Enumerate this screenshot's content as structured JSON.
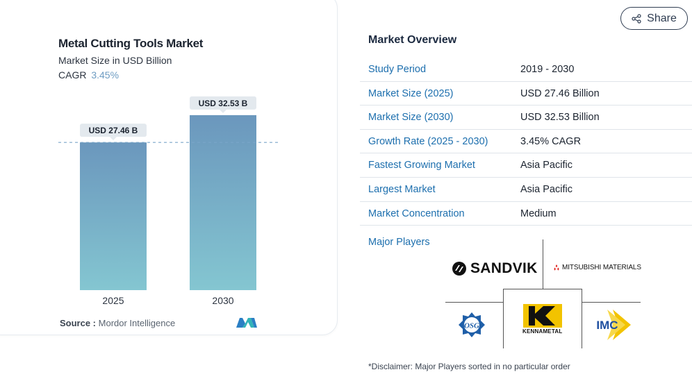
{
  "chart": {
    "title": "Metal Cutting Tools Market",
    "subtitle": "Market Size in USD Billion",
    "cagr_label": "CAGR",
    "cagr_value": "3.45%",
    "source_label": "Source :",
    "source_value": "Mordor Intelligence"
  },
  "chart_data": {
    "type": "bar",
    "title": "Metal Cutting Tools Market",
    "ylabel": "Market Size in USD Billion",
    "categories": [
      "2025",
      "2030"
    ],
    "values": [
      27.46,
      32.53
    ],
    "data_labels": [
      "USD 27.46 B",
      "USD 32.53 B"
    ],
    "ylim": [
      0,
      36
    ],
    "reference_line": 27.46,
    "grid": false,
    "colors": {
      "bar_top": "#6b97bd",
      "bar_bottom": "#84c6d1",
      "label_bg": "#e3e9ee",
      "ref_line": "#7aa5c9"
    }
  },
  "share": {
    "label": "Share",
    "icon": "share-icon"
  },
  "overview": {
    "title": "Market Overview",
    "rows": [
      {
        "key": "Study Period",
        "value": "2019 - 2030"
      },
      {
        "key": "Market Size (2025)",
        "value": "USD 27.46 Billion"
      },
      {
        "key": "Market Size (2030)",
        "value": "USD 32.53 Billion"
      },
      {
        "key": "Growth Rate (2025 - 2030)",
        "value": "3.45% CAGR"
      },
      {
        "key": "Fastest Growing Market",
        "value": "Asia Pacific"
      },
      {
        "key": "Largest Market",
        "value": "Asia Pacific"
      },
      {
        "key": "Market Concentration",
        "value": "Medium"
      }
    ]
  },
  "players": {
    "label": "Major Players",
    "sandvik": "SANDVIK",
    "mitsubishi": "MITSUBISHI MATERIALS",
    "kennametal": "KENNAMETAL",
    "imc": "IMC",
    "osg": "OSG"
  },
  "disclaimer": "*Disclaimer: Major Players sorted in no particular order",
  "colors": {
    "accent": "#1d6fae",
    "heading": "#1c2a40"
  }
}
